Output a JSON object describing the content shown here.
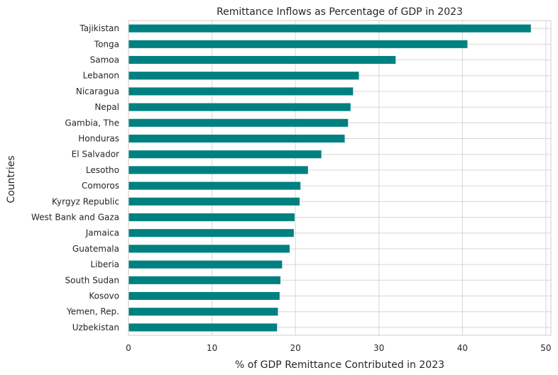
{
  "chart_data": {
    "type": "bar",
    "orientation": "horizontal",
    "title": "Remittance Inflows as Percentage of GDP in 2023",
    "xlabel": "% of GDP Remittance Contributed in 2023",
    "ylabel": "Countries",
    "xlim": [
      0,
      50.6
    ],
    "xticks": [
      0,
      10,
      20,
      30,
      40,
      50
    ],
    "grid": true,
    "bar_color": "#008080",
    "categories": [
      "Tajikistan",
      "Tonga",
      "Samoa",
      "Lebanon",
      "Nicaragua",
      "Nepal",
      "Gambia, The",
      "Honduras",
      "El Salvador",
      "Lesotho",
      "Comoros",
      "Kyrgyz Republic",
      "West Bank and Gaza",
      "Jamaica",
      "Guatemala",
      "Liberia",
      "South Sudan",
      "Kosovo",
      "Yemen, Rep.",
      "Uzbekistan"
    ],
    "values": [
      48.2,
      40.6,
      32.0,
      27.6,
      26.9,
      26.6,
      26.3,
      25.9,
      23.1,
      21.5,
      20.6,
      20.5,
      19.9,
      19.8,
      19.3,
      18.4,
      18.2,
      18.1,
      17.9,
      17.8
    ]
  }
}
